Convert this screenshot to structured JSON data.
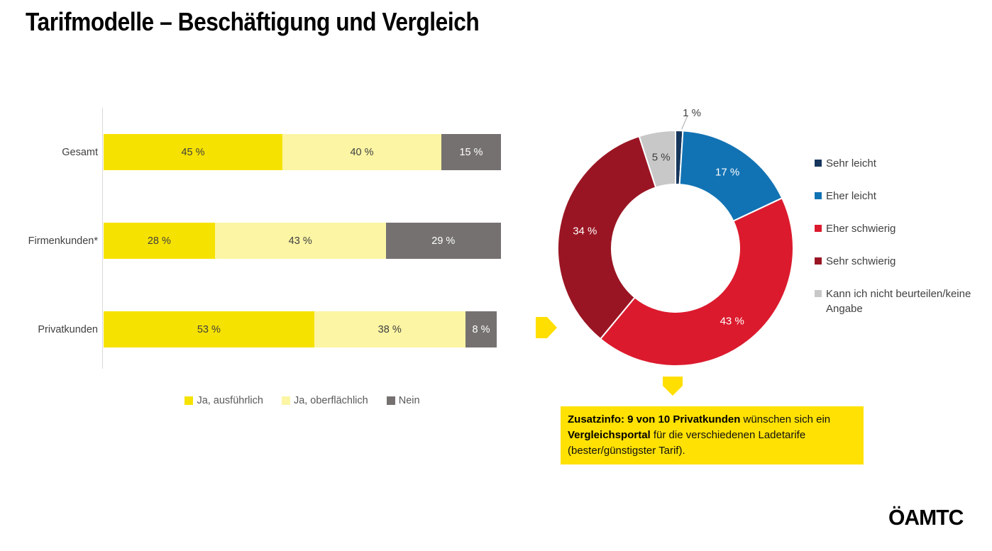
{
  "slide": {
    "title": "Tarifmodelle – Beschäftigung und Vergleich",
    "logo": "ÖAMTC",
    "background": "#FFFFFF"
  },
  "colors": {
    "accent_yellow": "#FFE103",
    "arrow_yellow": "#FFDF00",
    "axis_line": "#D9D9D9",
    "label_dark": "#404040",
    "legend_text": "#595959",
    "leader_line": "#A6A6A6"
  },
  "icons": {
    "right-arrow": "pentagon-right-block-arrow",
    "down-arrow": "pentagon-down-block-arrow"
  },
  "chart_data": [
    {
      "type": "bar",
      "orientation": "horizontal",
      "stacked": true,
      "grid": false,
      "categories": [
        "Gesamt",
        "Firmenkunden*",
        "Privatkunden"
      ],
      "series": [
        {
          "name": "Ja, ausführlich",
          "color": "#F6E200",
          "label_color": "#404040",
          "values": [
            45,
            28,
            53
          ]
        },
        {
          "name": "Ja, oberflächlich",
          "color": "#FBF5A4",
          "label_color": "#404040",
          "values": [
            40,
            43,
            38
          ]
        },
        {
          "name": "Nein",
          "color": "#767171",
          "label_color": "#FFFFFF",
          "values": [
            15,
            29,
            8
          ]
        }
      ],
      "value_suffix": " %",
      "xlim": [
        0,
        100
      ],
      "legend_position": "bottom"
    },
    {
      "type": "pie",
      "subtype": "donut",
      "start_angle_deg": 0,
      "direction": "clockwise",
      "slices": [
        {
          "label": "Sehr leicht",
          "value": 1,
          "color": "#16365C",
          "label_color": "#404040",
          "label_position": "outside"
        },
        {
          "label": "Eher leicht",
          "value": 17,
          "color": "#1273B4",
          "label_color": "#FFFFFF",
          "label_position": "inside"
        },
        {
          "label": "Eher schwierig",
          "value": 43,
          "color": "#DC1A2D",
          "label_color": "#FFFFFF",
          "label_position": "inside"
        },
        {
          "label": "Sehr schwierig",
          "value": 34,
          "color": "#9A1523",
          "label_color": "#FFFFFF",
          "label_position": "inside"
        },
        {
          "label": "Kann ich nicht beurteilen/keine Angabe",
          "value": 5,
          "color": "#C8C8C8",
          "label_color": "#404040",
          "label_position": "inside"
        }
      ],
      "value_suffix": " %",
      "legend_position": "right"
    }
  ],
  "zusatzinfo": {
    "runs": [
      {
        "text": "Zusatzinfo: 9 von 10 Privatkunden",
        "bold": true
      },
      {
        "text": " wünschen sich ein ",
        "bold": false
      },
      {
        "text": "Vergleichsportal",
        "bold": true
      },
      {
        "text": " für die verschiedenen Ladetarife (bester/günstigster Tarif).",
        "bold": false
      }
    ]
  }
}
